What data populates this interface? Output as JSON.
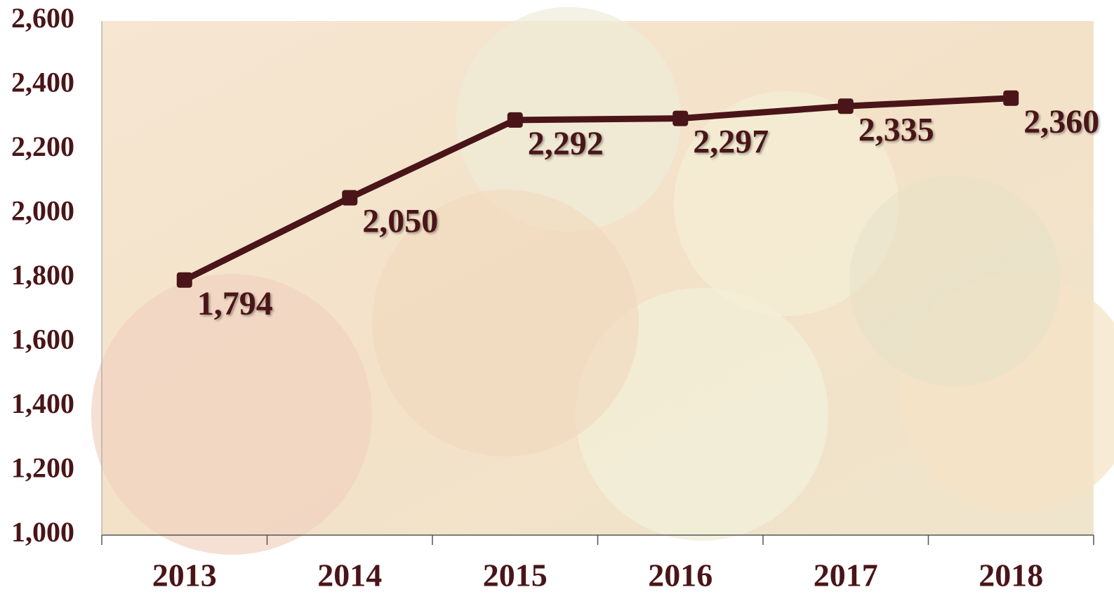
{
  "chart_data": {
    "type": "line",
    "categories": [
      "2013",
      "2014",
      "2015",
      "2016",
      "2017",
      "2018"
    ],
    "values": [
      1794,
      2050,
      2292,
      2297,
      2335,
      2360
    ],
    "value_labels": [
      "1,794",
      "2,050",
      "2,292",
      "2,297",
      "2,335",
      "2,360"
    ],
    "color": "#4a1518",
    "ylim": [
      1000,
      2600
    ],
    "yticks": [
      {
        "value": 1000,
        "label": "1,000"
      },
      {
        "value": 1200,
        "label": "1,200"
      },
      {
        "value": 1400,
        "label": "1,400"
      },
      {
        "value": 1600,
        "label": "1,600"
      },
      {
        "value": 1800,
        "label": "1,800"
      },
      {
        "value": 2000,
        "label": "2,000"
      },
      {
        "value": 2200,
        "label": "2,200"
      },
      {
        "value": 2400,
        "label": "2,400"
      },
      {
        "value": 2600,
        "label": "2,600"
      }
    ],
    "grid": false
  }
}
